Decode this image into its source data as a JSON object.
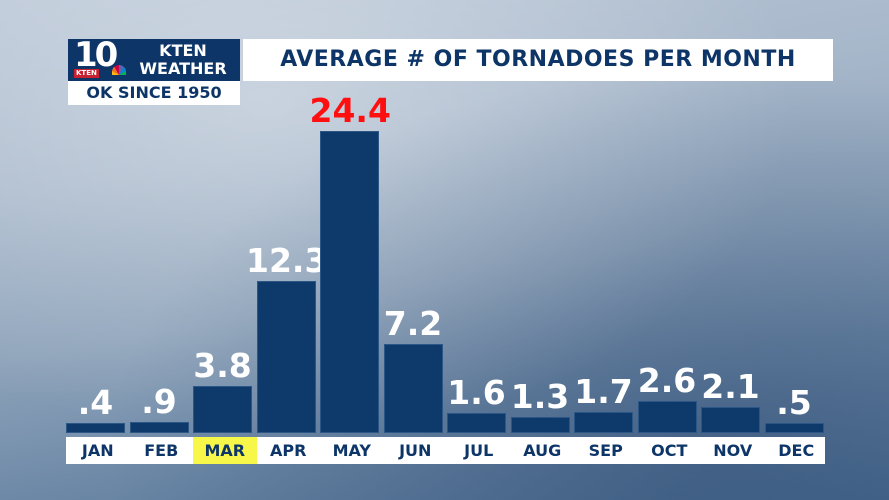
{
  "header": {
    "logo": {
      "number": "10",
      "tag": "KTEN",
      "line1": "KTEN",
      "line2": "WEATHER",
      "subtitle": "OK SINCE 1950"
    },
    "title": "AVERAGE # OF TORNADOES PER MONTH"
  },
  "colors": {
    "bar": "#0e3a6b",
    "title_text": "#0d3567",
    "peak_label": "#ff1010",
    "highlight": "#f7f74a"
  },
  "bars": [
    {
      "month": "JAN",
      "label": ".4"
    },
    {
      "month": "FEB",
      "label": ".9"
    },
    {
      "month": "MAR",
      "label": "3.8"
    },
    {
      "month": "APR",
      "label": "12.3"
    },
    {
      "month": "MAY",
      "label": "24.4"
    },
    {
      "month": "JUN",
      "label": "7.2"
    },
    {
      "month": "JUL",
      "label": "1.6"
    },
    {
      "month": "AUG",
      "label": "1.3"
    },
    {
      "month": "SEP",
      "label": "1.7"
    },
    {
      "month": "OCT",
      "label": "2.6"
    },
    {
      "month": "NOV",
      "label": "2.1"
    },
    {
      "month": "DEC",
      "label": ".5"
    }
  ],
  "chart_data": {
    "type": "bar",
    "title": "AVERAGE # OF TORNADOES PER MONTH",
    "subtitle": "OK SINCE 1950",
    "categories": [
      "JAN",
      "FEB",
      "MAR",
      "APR",
      "MAY",
      "JUN",
      "JUL",
      "AUG",
      "SEP",
      "OCT",
      "NOV",
      "DEC"
    ],
    "values": [
      0.4,
      0.9,
      3.8,
      12.3,
      24.4,
      7.2,
      1.6,
      1.3,
      1.7,
      2.6,
      2.1,
      0.5
    ],
    "xlabel": "",
    "ylabel": "",
    "highlighted_category": "MAR",
    "peak_category": "MAY",
    "grid": false,
    "legend": null
  }
}
